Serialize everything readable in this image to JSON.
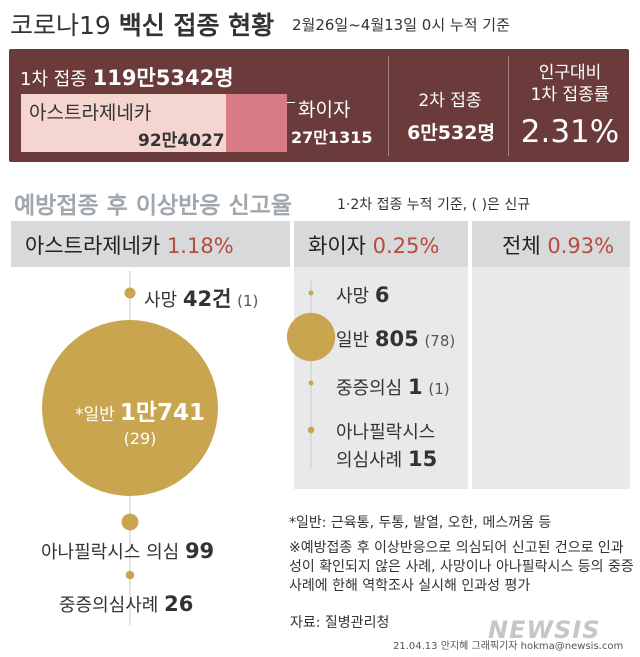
{
  "header": {
    "title_prefix": "코로나19",
    "title_bold": "백신 접종 현황",
    "subtitle": "2월26일~4월13일 0시 누적 기준"
  },
  "panel": {
    "first_dose_label": "1차 접종",
    "first_dose_value": "119만5342명",
    "astrazeneca_label": "아스트라제네카",
    "astrazeneca_value": "92만4027",
    "pfizer_label": "화이자",
    "pfizer_value": "27만1315",
    "second_dose_label": "2차 접종",
    "second_dose_value": "6만532명",
    "rate_label_line1": "인구대비",
    "rate_label_line2": "1차 접종률",
    "rate_value": "2.31%",
    "colors": {
      "panel": "#6b3a3a",
      "astrazeneca": "#f5d5d0",
      "pfizer": "#d97a87"
    }
  },
  "section": {
    "title": "예방접종 후 이상반응 신고율",
    "subtitle": "1·2차 접종 누적 기준, ( )은 신규"
  },
  "columns": {
    "az": {
      "name": "아스트라제네카",
      "rate": "1.18%"
    },
    "pf": {
      "name": "화이자",
      "rate": "0.25%"
    },
    "total": {
      "name": "전체",
      "rate": "0.93%"
    }
  },
  "az_items": {
    "death_label": "사망",
    "death_value": "42건",
    "death_new": "(1)",
    "general_label": "*일반",
    "general_value": "1만741",
    "general_new": "(29)",
    "anaphylaxis_label": "아나필락시스 의심",
    "anaphylaxis_value": "99",
    "severe_label": "중증의심사례",
    "severe_value": "26"
  },
  "pf_items": {
    "death_label": "사망",
    "death_value": "6",
    "general_label": "일반",
    "general_value": "805",
    "general_new": "(78)",
    "severe_label": "중증의심",
    "severe_value": "1",
    "severe_new": "(1)",
    "anaphylaxis_label_line1": "아나필락시스",
    "anaphylaxis_label_line2": "의심사례",
    "anaphylaxis_value": "15"
  },
  "notes": {
    "line1": "*일반: 근육통, 두통, 발열, 오한, 메스꺼움 등",
    "line2": "※예방접종 후 이상반응으로 의심되어 신고된 건으로 인과성이 확인되지 않은 사례, 사망이나 아나필락시스 등의 중증사례에 한해 역학조사 실시해 인과성 평가",
    "source": "자료: 질병관리청",
    "credit": "21.04.13 안지혜 그래픽기자 hokma@newsis.com",
    "logo": "NEWSIS"
  },
  "chart_data": {
    "type": "bubble",
    "title": "예방접종 후 이상반응 신고율",
    "subtitle": "1·2차 접종 누적 기준, ( )은 신규",
    "bubble_color": "#c9a54f",
    "rates": [
      {
        "name": "아스트라제네카",
        "value": 1.18
      },
      {
        "name": "화이자",
        "value": 0.25
      },
      {
        "name": "전체",
        "value": 0.93
      }
    ],
    "series": [
      {
        "name": "아스트라제네카",
        "points": [
          {
            "label": "사망",
            "value": 42,
            "new": 1
          },
          {
            "label": "일반",
            "value": 10741,
            "new": 29
          },
          {
            "label": "아나필락시스 의심",
            "value": 99
          },
          {
            "label": "중증의심사례",
            "value": 26
          }
        ]
      },
      {
        "name": "화이자",
        "points": [
          {
            "label": "사망",
            "value": 6
          },
          {
            "label": "일반",
            "value": 805,
            "new": 78
          },
          {
            "label": "중증의심",
            "value": 1,
            "new": 1
          },
          {
            "label": "아나필락시스 의심사례",
            "value": 15
          }
        ]
      }
    ],
    "vaccinations": {
      "first_dose_total": 1195342,
      "astrazeneca": 924027,
      "pfizer": 271315,
      "second_dose_total": 60532,
      "first_dose_rate_pct": 2.31
    }
  }
}
